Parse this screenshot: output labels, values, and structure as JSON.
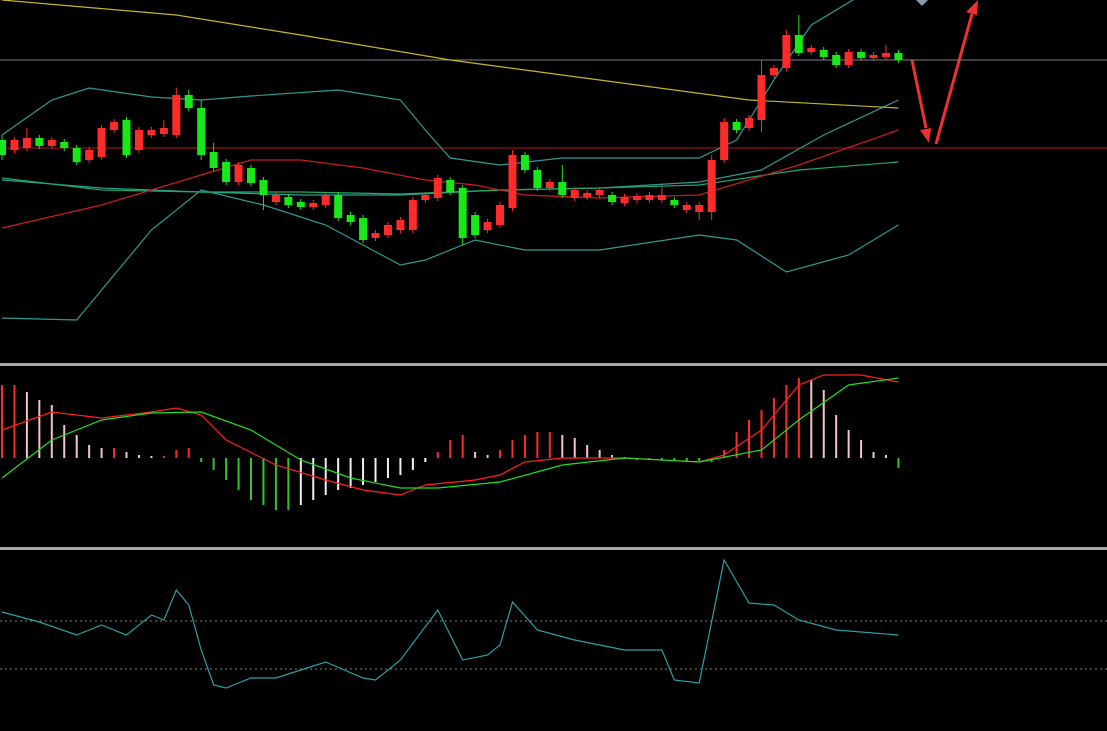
{
  "chart_data": [
    {
      "type": "candlestick",
      "xlim": [
        -0.16,
        88.75
      ],
      "ylim": [
        0,
        360
      ],
      "up_color": "#ff2a2a",
      "down_color": "#18e818",
      "open": [
        220,
        210,
        212,
        222,
        214,
        218,
        212,
        200,
        203,
        230,
        240,
        210,
        225,
        226,
        225,
        265,
        252,
        208,
        198,
        178,
        192,
        180,
        158,
        163,
        158,
        153,
        155,
        165,
        145,
        142,
        122,
        125,
        130,
        130,
        160,
        162,
        180,
        172,
        145,
        130,
        135,
        152,
        205,
        190,
        172,
        178,
        162,
        163,
        165,
        165,
        157,
        160,
        160,
        160,
        160,
        150,
        148,
        148,
        200,
        238,
        232,
        240,
        285,
        292,
        325,
        308,
        310,
        305,
        295,
        308,
        302,
        303,
        307
      ],
      "high": [
        225,
        223,
        232,
        225,
        223,
        221,
        215,
        213,
        235,
        241,
        243,
        233,
        233,
        240,
        272,
        270,
        260,
        217,
        201,
        198,
        195,
        183,
        168,
        166,
        161,
        160,
        168,
        168,
        148,
        145,
        130,
        138,
        143,
        163,
        168,
        185,
        183,
        175,
        148,
        141,
        158,
        210,
        208,
        193,
        181,
        195,
        173,
        170,
        173,
        168,
        166,
        167,
        168,
        175,
        163,
        158,
        158,
        205,
        242,
        241,
        245,
        300,
        295,
        330,
        345,
        315,
        313,
        308,
        311,
        311,
        308,
        315,
        310
      ],
      "low": [
        200,
        207,
        209,
        211,
        211,
        209,
        195,
        197,
        200,
        227,
        202,
        207,
        222,
        223,
        222,
        249,
        200,
        189,
        175,
        175,
        174,
        150,
        155,
        152,
        150,
        150,
        152,
        139,
        135,
        117,
        119,
        122,
        127,
        127,
        157,
        159,
        165,
        115,
        122,
        127,
        132,
        149,
        187,
        169,
        169,
        162,
        159,
        160,
        162,
        155,
        154,
        157,
        157,
        157,
        152,
        147,
        140,
        140,
        197,
        227,
        229,
        228,
        282,
        289,
        304,
        305,
        300,
        292,
        292,
        299,
        299,
        300,
        297
      ],
      "close": [
        205,
        220,
        222,
        214,
        220,
        212,
        198,
        210,
        232,
        238,
        205,
        230,
        230,
        232,
        265,
        252,
        205,
        192,
        178,
        195,
        177,
        165,
        165,
        155,
        153,
        157,
        165,
        142,
        138,
        120,
        127,
        135,
        140,
        160,
        165,
        182,
        168,
        122,
        125,
        138,
        155,
        205,
        190,
        172,
        178,
        165,
        170,
        167,
        170,
        158,
        163,
        164,
        165,
        165,
        155,
        155,
        155,
        200,
        238,
        230,
        242,
        285,
        292,
        325,
        307,
        312,
        303,
        295,
        308,
        302,
        305,
        307,
        300
      ],
      "series": [
        {
          "color": "#2f9a94",
          "x": [
            0,
            4,
            7,
            12,
            16,
            20,
            27,
            32,
            34,
            36,
            40,
            45,
            56,
            59,
            62,
            65,
            69
          ],
          "values": [
            225,
            260,
            272,
            263,
            260,
            264,
            270,
            260,
            230,
            202,
            195,
            202,
            202,
            220,
            280,
            335,
            365
          ]
        },
        {
          "color": "#2f9a94",
          "x": [
            0,
            6,
            8,
            12,
            16,
            21,
            26,
            32,
            34,
            38,
            42,
            48,
            56,
            59,
            63,
            68,
            72
          ],
          "values": [
            42,
            40,
            70,
            130,
            170,
            155,
            135,
            95,
            100,
            120,
            110,
            110,
            125,
            120,
            88,
            105,
            135
          ]
        },
        {
          "color": "#2f9a94",
          "x": [
            0,
            8,
            16,
            24,
            32,
            40,
            48,
            56,
            61,
            66,
            72
          ],
          "values": [
            180,
            172,
            168,
            165,
            165,
            170,
            172,
            178,
            190,
            225,
            260
          ]
        },
        {
          "color": "#1fa868",
          "x": [
            0,
            8,
            16,
            24,
            32,
            40,
            48,
            56,
            64,
            72
          ],
          "values": [
            182,
            170,
            168,
            168,
            166,
            170,
            172,
            175,
            190,
            198
          ]
        },
        {
          "color": "#c81e1e",
          "x": [
            0,
            8,
            16,
            20,
            24,
            29,
            34,
            38,
            42,
            48,
            56,
            64,
            72
          ],
          "values": [
            132,
            155,
            185,
            200,
            200,
            192,
            180,
            175,
            165,
            162,
            165,
            195,
            230
          ]
        },
        {
          "color": "#c8b428",
          "x": [
            0,
            14,
            24,
            36,
            48,
            60,
            72
          ],
          "values": [
            360,
            345,
            325,
            300,
            280,
            260,
            252
          ]
        }
      ],
      "hlines": [
        {
          "value": 300,
          "color": "#808080"
        },
        {
          "value": 212,
          "color": "#b01818"
        }
      ]
    },
    {
      "type": "macd",
      "xlim": [
        -0.16,
        88.75
      ],
      "ylim": [
        -89,
        91
      ],
      "colors": {
        "up_rising": "#ff2a2a",
        "up_falling": "#f4c4c4",
        "down_falling": "#2cc82c",
        "down_rising": "#f0f0f0"
      },
      "values": [
        73,
        73,
        66,
        58,
        53,
        33,
        23,
        13,
        10,
        10,
        6,
        3,
        2,
        2,
        8,
        10,
        -4,
        -12,
        -22,
        -32,
        -42,
        -47,
        -52,
        -52,
        -47,
        -42,
        -37,
        -32,
        -30,
        -27,
        -24,
        -20,
        -17,
        -12,
        -4,
        6,
        18,
        23,
        6,
        3,
        8,
        18,
        23,
        26,
        26,
        23,
        20,
        13,
        8,
        3,
        1,
        -2,
        -2,
        -2,
        -2,
        -3,
        -3,
        -4,
        8,
        26,
        38,
        48,
        60,
        73,
        80,
        78,
        68,
        43,
        28,
        18,
        6,
        3,
        -10
      ],
      "series": [
        {
          "color": "#ff2020",
          "x": [
            0,
            4,
            8,
            12,
            14,
            16,
            18,
            22,
            26,
            29,
            32,
            34,
            38,
            40,
            42,
            45,
            50,
            56,
            58,
            61,
            64,
            66,
            69,
            72
          ],
          "values": [
            28,
            46,
            40,
            46,
            50,
            43,
            18,
            -7,
            -22,
            -32,
            -37,
            -27,
            -22,
            -17,
            -4,
            0,
            0,
            -4,
            3,
            28,
            73,
            83,
            83,
            76
          ]
        },
        {
          "color": "#20e020",
          "x": [
            0,
            4,
            8,
            12,
            16,
            20,
            24,
            28,
            32,
            35,
            40,
            45,
            50,
            56,
            61,
            64,
            68,
            72
          ],
          "values": [
            -20,
            18,
            38,
            45,
            46,
            28,
            -2,
            -20,
            -30,
            -30,
            -24,
            -7,
            0,
            -4,
            8,
            38,
            73,
            80
          ]
        }
      ]
    },
    {
      "type": "line",
      "xlim": [
        -0.16,
        88.75
      ],
      "ylim": [
        0,
        181
      ],
      "series": [
        {
          "color": "#2aa0a8",
          "x": [
            0,
            3,
            6,
            8,
            10,
            12,
            13,
            14,
            15,
            16,
            17,
            18,
            20,
            22,
            26,
            29,
            30,
            32,
            35,
            37,
            39,
            40,
            41,
            43,
            46,
            50,
            53,
            54,
            56,
            58,
            60,
            62,
            64,
            67,
            72
          ],
          "values": [
            119,
            109,
            96,
            106,
            96,
            116,
            111,
            141,
            126,
            81,
            46,
            43,
            53,
            53,
            69,
            53,
            51,
            71,
            121,
            71,
            76,
            86,
            129,
            101,
            91,
            81,
            81,
            51,
            48,
            171,
            128,
            126,
            111,
            101,
            96
          ]
        }
      ],
      "hlines": [
        {
          "value": 110,
          "color": "#808080",
          "dashed": true
        },
        {
          "value": 62,
          "color": "#808080",
          "dashed": true
        }
      ]
    }
  ]
}
